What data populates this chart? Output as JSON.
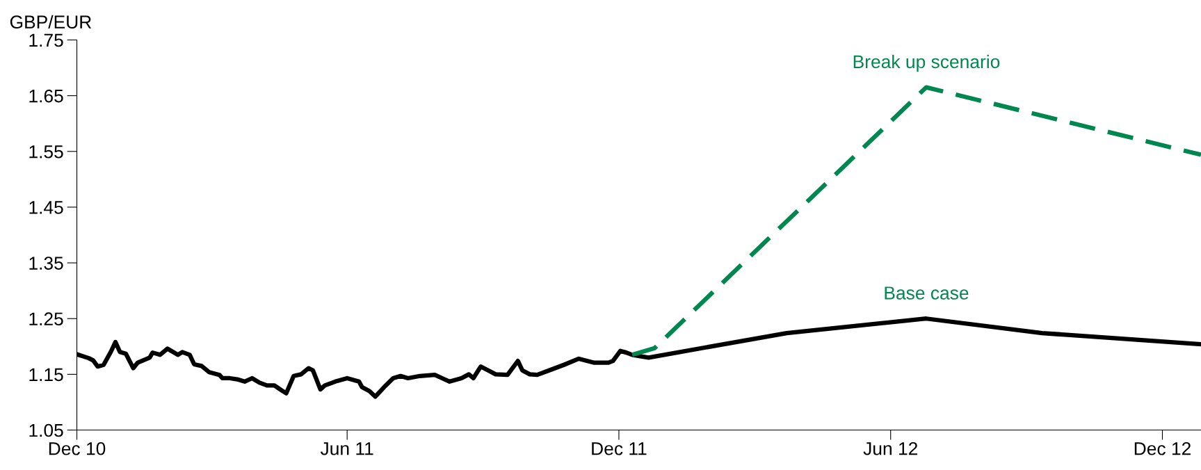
{
  "chart_data": {
    "type": "line",
    "ylabel": "GBP/EUR",
    "xlim": [
      "2010-12-01",
      "2012-12-27"
    ],
    "xticks": [
      {
        "value": "2010-12-01",
        "label": "Dec 10"
      },
      {
        "value": "2011-06-01",
        "label": "Jun 11"
      },
      {
        "value": "2011-12-01",
        "label": "Dec 11"
      },
      {
        "value": "2012-06-01",
        "label": "Jun 12"
      },
      {
        "value": "2012-12-01",
        "label": "Dec 12"
      }
    ],
    "ylim": [
      1.05,
      1.75
    ],
    "yticks": [
      1.05,
      1.15,
      1.25,
      1.35,
      1.45,
      1.55,
      1.65,
      1.75
    ],
    "grid": false,
    "legend": false,
    "series": [
      {
        "name": "Base case",
        "color": "#000000",
        "line_style": "solid",
        "x": [
          "2010-12-01",
          "2010-12-09",
          "2010-12-12",
          "2010-12-15",
          "2010-12-19",
          "2010-12-24",
          "2010-12-27",
          "2010-12-30",
          "2011-01-03",
          "2011-01-08",
          "2011-01-11",
          "2011-01-19",
          "2011-01-21",
          "2011-01-26",
          "2011-01-31",
          "2011-02-07",
          "2011-02-10",
          "2011-02-15",
          "2011-02-18",
          "2011-02-23",
          "2011-02-28",
          "2011-03-07",
          "2011-03-09",
          "2011-03-14",
          "2011-03-19",
          "2011-03-24",
          "2011-03-29",
          "2011-04-03",
          "2011-04-08",
          "2011-04-13",
          "2011-04-18",
          "2011-04-21",
          "2011-04-26",
          "2011-05-01",
          "2011-05-06",
          "2011-05-09",
          "2011-05-14",
          "2011-05-17",
          "2011-05-24",
          "2011-06-01",
          "2011-06-09",
          "2011-06-11",
          "2011-06-16",
          "2011-06-20",
          "2011-06-27",
          "2011-07-02",
          "2011-07-07",
          "2011-07-12",
          "2011-07-20",
          "2011-07-30",
          "2011-08-04",
          "2011-08-09",
          "2011-08-17",
          "2011-08-22",
          "2011-08-25",
          "2011-08-30",
          "2011-09-04",
          "2011-09-09",
          "2011-09-17",
          "2011-09-24",
          "2011-09-27",
          "2011-10-02",
          "2011-10-07",
          "2011-10-15",
          "2011-10-25",
          "2011-11-04",
          "2011-11-14",
          "2011-11-24",
          "2011-11-27",
          "2011-12-02",
          "2011-12-06",
          "2011-12-10",
          "2011-12-21",
          "2012-03-23",
          "2012-06-25",
          "2012-09-11",
          "2012-12-27"
        ],
        "values": [
          1.186,
          1.179,
          1.175,
          1.164,
          1.167,
          1.191,
          1.208,
          1.19,
          1.187,
          1.161,
          1.171,
          1.18,
          1.189,
          1.185,
          1.196,
          1.185,
          1.19,
          1.185,
          1.168,
          1.165,
          1.154,
          1.149,
          1.143,
          1.143,
          1.141,
          1.137,
          1.143,
          1.135,
          1.13,
          1.13,
          1.121,
          1.116,
          1.147,
          1.15,
          1.161,
          1.157,
          1.123,
          1.13,
          1.137,
          1.143,
          1.137,
          1.127,
          1.12,
          1.11,
          1.13,
          1.143,
          1.147,
          1.143,
          1.147,
          1.149,
          1.143,
          1.137,
          1.143,
          1.15,
          1.143,
          1.164,
          1.157,
          1.15,
          1.149,
          1.174,
          1.157,
          1.15,
          1.149,
          1.157,
          1.167,
          1.178,
          1.171,
          1.171,
          1.174,
          1.192,
          1.189,
          1.185,
          1.18,
          1.224,
          1.25,
          1.224,
          1.204
        ]
      },
      {
        "name": "Break up scenario",
        "color": "#00874f",
        "line_style": "dashed",
        "x": [
          "2011-12-10",
          "2011-12-25",
          "2012-06-25",
          "2012-12-27"
        ],
        "values": [
          1.185,
          1.197,
          1.665,
          1.544
        ]
      }
    ]
  }
}
